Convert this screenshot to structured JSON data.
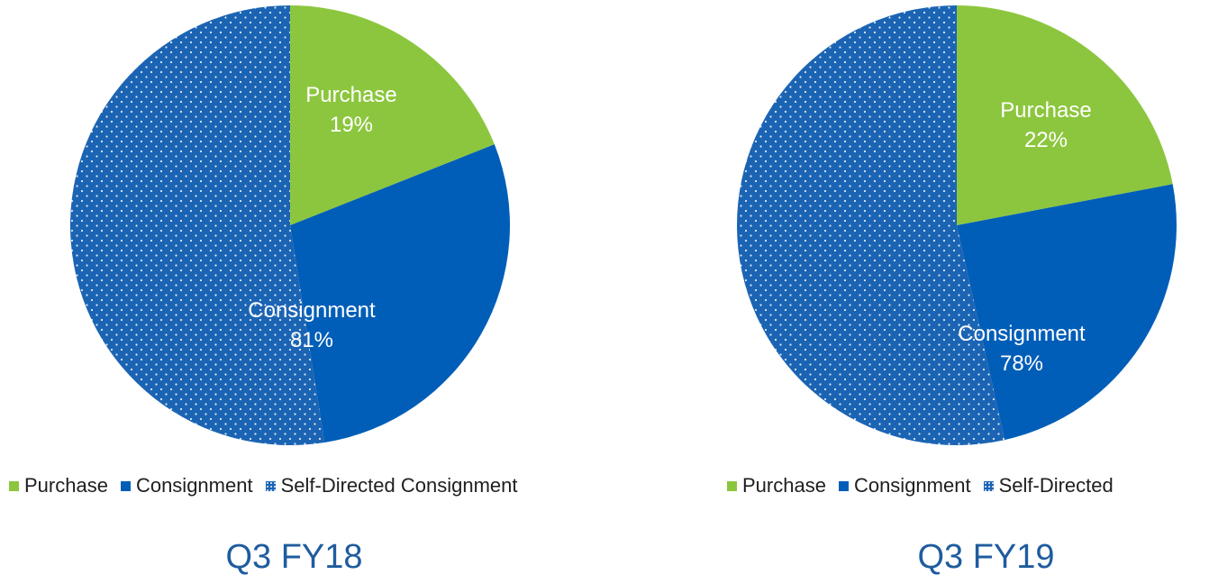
{
  "colors": {
    "purchase": "#8cc63e",
    "consignment": "#005eb8",
    "self_directed": "#1b64b4",
    "caption": "#1f5c9e"
  },
  "chart_data": [
    {
      "type": "pie",
      "title": "Q3 FY18",
      "slices": [
        {
          "name": "Purchase",
          "value": 19,
          "color": "#8cc63e",
          "pattern": "solid"
        },
        {
          "name": "Consignment",
          "value": 28.5,
          "color": "#005eb8",
          "pattern": "solid"
        },
        {
          "name": "Self-Directed Consignment",
          "value": 52.5,
          "color": "#1b64b4",
          "pattern": "dotted"
        }
      ],
      "data_labels": [
        {
          "text": "Purchase",
          "value_text": "19%"
        },
        {
          "text": "Consignment",
          "value_text": "81%"
        }
      ],
      "legend": [
        "Purchase",
        "Consignment",
        "Self-Directed Consignment"
      ],
      "legend_position": "bottom"
    },
    {
      "type": "pie",
      "title": "Q3 FY19",
      "slices": [
        {
          "name": "Purchase",
          "value": 22,
          "color": "#8cc63e",
          "pattern": "solid"
        },
        {
          "name": "Consignment",
          "value": 24.5,
          "color": "#005eb8",
          "pattern": "solid"
        },
        {
          "name": "Self-Directed",
          "value": 53.5,
          "color": "#1b64b4",
          "pattern": "dotted"
        }
      ],
      "data_labels": [
        {
          "text": "Purchase",
          "value_text": "22%"
        },
        {
          "text": "Consignment",
          "value_text": "78%"
        }
      ],
      "legend": [
        "Purchase",
        "Consignment",
        "Self-Directed"
      ],
      "legend_position": "bottom"
    }
  ]
}
